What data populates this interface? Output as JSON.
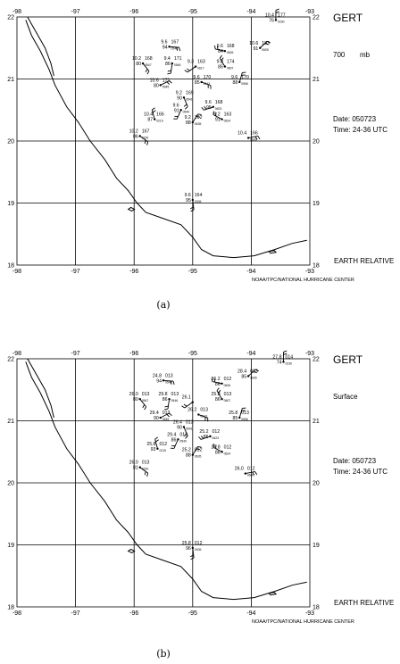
{
  "panels": [
    {
      "id": "a",
      "storm": "GERT",
      "level_value": "700",
      "level_unit": "mb",
      "date": "Date: 050723",
      "time": "Time: 24-36 UTC",
      "relative": "EARTH RELATIVE",
      "credit": "NOAA/TPC/NATIONAL HURRICANE CENTER",
      "caption": "(a)",
      "lon_ticks": [
        "-98",
        "-97",
        "-96",
        "-95",
        "-94",
        "-93"
      ],
      "lat_ticks": [
        "22",
        "21",
        "20",
        "19",
        "18"
      ],
      "stations": [
        {
          "lon": -93.58,
          "lat": 21.95,
          "t": "10.4",
          "d": "76",
          "v": "177",
          "id": "0230"
        },
        {
          "lon": -93.85,
          "lat": 21.5,
          "t": "10.6",
          "d": "91",
          "v": "183",
          "id": "0605"
        },
        {
          "lon": -95.4,
          "lat": 21.52,
          "t": "9.6",
          "d": "94",
          "v": "167",
          "id": "0548"
        },
        {
          "lon": -95.85,
          "lat": 21.25,
          "t": "10.2",
          "d": "80",
          "v": "168",
          "id": "0547"
        },
        {
          "lon": -95.35,
          "lat": 21.25,
          "t": "9.4",
          "d": "86",
          "v": "171",
          "id": "0546"
        },
        {
          "lon": -94.95,
          "lat": 21.2,
          "t": "9.3",
          "d": "",
          "v": "163",
          "id": "0617"
        },
        {
          "lon": -94.45,
          "lat": 21.45,
          "t": "9.6",
          "d": "84",
          "v": "168",
          "id": "0626"
        },
        {
          "lon": -94.45,
          "lat": 21.2,
          "t": "9.8",
          "d": "85",
          "v": "174",
          "id": "0607"
        },
        {
          "lon": -94.2,
          "lat": 20.95,
          "t": "9.6",
          "d": "88",
          "v": "170",
          "id": "0556"
        },
        {
          "lon": -95.55,
          "lat": 20.9,
          "t": "10.6",
          "d": "80",
          "v": "171",
          "id": "0545"
        },
        {
          "lon": -94.85,
          "lat": 20.95,
          "t": "9.6",
          "d": "85",
          "v": "170",
          "id": "0543"
        },
        {
          "lon": -95.15,
          "lat": 20.7,
          "t": "9.2",
          "d": "90",
          "v": "169",
          "id": "0541"
        },
        {
          "lon": -95.2,
          "lat": 20.5,
          "t": "9.6",
          "d": "91",
          "v": "",
          "id": "0540"
        },
        {
          "lon": -94.65,
          "lat": 20.55,
          "t": "9.6",
          "d": "95",
          "v": "168",
          "id": "0623"
        },
        {
          "lon": -94.5,
          "lat": 20.35,
          "t": "9.2",
          "d": "91",
          "v": "163",
          "id": "0624"
        },
        {
          "lon": -95.65,
          "lat": 20.35,
          "t": "10.4",
          "d": "87",
          "v": "166",
          "id": "0219"
        },
        {
          "lon": -95.0,
          "lat": 20.3,
          "t": "9.2",
          "d": "88",
          "v": "162",
          "id": "0635"
        },
        {
          "lon": -94.05,
          "lat": 20.05,
          "t": "10.4",
          "d": "",
          "v": "166",
          "id": "0600"
        },
        {
          "lon": -95.9,
          "lat": 20.08,
          "t": "10.2",
          "d": "86",
          "v": "167",
          "id": "0220"
        },
        {
          "lon": -95.0,
          "lat": 19.05,
          "t": "9.6",
          "d": "95",
          "v": "164",
          "id": "0305"
        }
      ]
    },
    {
      "id": "b",
      "storm": "GERT",
      "level_value": "Surface",
      "level_unit": "",
      "date": "Date: 050723",
      "time": "Time: 24-36 UTC",
      "relative": "EARTH RELATIVE",
      "credit": "NOAA/TPC/NATIONAL HURRICANE CENTER",
      "caption": "(b)",
      "lon_ticks": [
        "-98",
        "-97",
        "-96",
        "-95",
        "-94",
        "-93"
      ],
      "lat_ticks": [
        "22",
        "21",
        "20",
        "19",
        "18"
      ],
      "stations": [
        {
          "lon": -93.45,
          "lat": 21.95,
          "t": "27.8",
          "d": "74",
          "v": "014",
          "id": "0230"
        },
        {
          "lon": -94.05,
          "lat": 21.72,
          "t": "28.4",
          "d": "85",
          "v": "013",
          "id": "0605"
        },
        {
          "lon": -95.5,
          "lat": 21.65,
          "t": "24.8",
          "d": "94",
          "v": "013",
          "id": "0548"
        },
        {
          "lon": -95.9,
          "lat": 21.35,
          "t": "26.0",
          "d": "80",
          "v": "013",
          "id": "0547"
        },
        {
          "lon": -95.4,
          "lat": 21.35,
          "t": "29.8",
          "d": "86",
          "v": "013",
          "id": "0546"
        },
        {
          "lon": -95.0,
          "lat": 21.3,
          "t": "26.1",
          "d": "",
          "v": "",
          "id": ""
        },
        {
          "lon": -94.5,
          "lat": 21.6,
          "t": "26.2",
          "d": "86",
          "v": "012",
          "id": "0626"
        },
        {
          "lon": -94.5,
          "lat": 21.35,
          "t": "25.8",
          "d": "86",
          "v": "013",
          "id": "0607"
        },
        {
          "lon": -94.2,
          "lat": 21.05,
          "t": "25.8",
          "d": "85",
          "v": "013",
          "id": "0556"
        },
        {
          "lon": -95.55,
          "lat": 21.05,
          "t": "29.4",
          "d": "90",
          "v": "013",
          "id": "0545"
        },
        {
          "lon": -94.9,
          "lat": 21.1,
          "t": "26.2",
          "d": "",
          "v": "013",
          "id": "0543"
        },
        {
          "lon": -95.15,
          "lat": 20.9,
          "t": "26.4",
          "d": "90",
          "v": "013",
          "id": "0541"
        },
        {
          "lon": -95.25,
          "lat": 20.7,
          "t": "29.4",
          "d": "86",
          "v": "013",
          "id": "0540"
        },
        {
          "lon": -94.7,
          "lat": 20.75,
          "t": "25.2",
          "d": "86",
          "v": "012",
          "id": "0623"
        },
        {
          "lon": -94.5,
          "lat": 20.5,
          "t": "25.8",
          "d": "86",
          "v": "012",
          "id": "0624"
        },
        {
          "lon": -95.6,
          "lat": 20.55,
          "t": "25.8",
          "d": "93",
          "v": "012",
          "id": "0219"
        },
        {
          "lon": -95.0,
          "lat": 20.45,
          "t": "25.2",
          "d": "88",
          "v": "012",
          "id": "0635"
        },
        {
          "lon": -94.1,
          "lat": 20.15,
          "t": "26.0",
          "d": "",
          "v": "012",
          "id": "0600"
        },
        {
          "lon": -95.9,
          "lat": 20.25,
          "t": "26.0",
          "d": "81",
          "v": "013",
          "id": "0220"
        },
        {
          "lon": -95.0,
          "lat": 18.95,
          "t": "25.8",
          "d": "96",
          "v": "012",
          "id": "0305"
        }
      ]
    }
  ]
}
